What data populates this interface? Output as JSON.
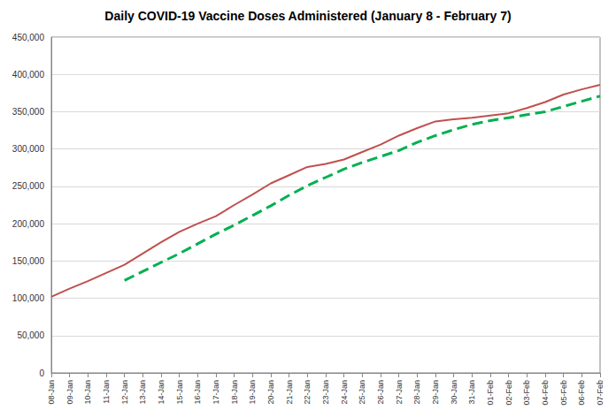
{
  "chart_data": {
    "type": "line",
    "title": "Daily COVID-19 Vaccine Doses Administered (January 8 - February 7)",
    "categories": [
      "08-Jan",
      "09-Jan",
      "10-Jan",
      "11-Jan",
      "12-Jan",
      "13-Jan",
      "14-Jan",
      "15-Jan",
      "16-Jan",
      "17-Jan",
      "18-Jan",
      "19-Jan",
      "20-Jan",
      "21-Jan",
      "22-Jan",
      "23-Jan",
      "24-Jan",
      "25-Jan",
      "26-Jan",
      "27-Jan",
      "28-Jan",
      "29-Jan",
      "30-Jan",
      "31-Jan",
      "01-Feb",
      "02-Feb",
      "03-Feb",
      "04-Feb",
      "05-Feb",
      "06-Feb",
      "07-Feb"
    ],
    "series": [
      {
        "color": "#c0504d",
        "line_style": "solid",
        "values": [
          102000,
          113000,
          123000,
          134000,
          145000,
          160000,
          175000,
          189000,
          200000,
          210000,
          225000,
          239000,
          254000,
          265000,
          276000,
          280000,
          286000,
          296000,
          306000,
          318000,
          328000,
          337000,
          340000,
          342000,
          345000,
          348000,
          355000,
          363000,
          373000,
          380000,
          386000
        ]
      },
      {
        "color": "#00b050",
        "line_style": "dashed",
        "values": [
          null,
          null,
          null,
          null,
          124000,
          136000,
          148000,
          160000,
          173000,
          186000,
          198000,
          211000,
          224000,
          238000,
          251000,
          262000,
          273000,
          282000,
          290000,
          298000,
          309000,
          318000,
          326000,
          333000,
          338000,
          342000,
          346000,
          350000,
          357000,
          364000,
          371000
        ]
      }
    ],
    "ylim": [
      0,
      450000
    ],
    "yticks": [
      0,
      {
        "value": 50000,
        "label": "50,000"
      },
      {
        "value": 100000,
        "label": "100,000"
      },
      {
        "value": 150000,
        "label": "150,000"
      },
      {
        "value": 200000,
        "label": "200,000"
      },
      {
        "value": 250000,
        "label": "250,000"
      },
      {
        "value": 300000,
        "label": "300,000"
      },
      {
        "value": 350000,
        "label": "350,000"
      },
      {
        "value": 400000,
        "label": "400,000"
      },
      {
        "value": 450000,
        "label": "450,000"
      }
    ],
    "grid": true
  }
}
